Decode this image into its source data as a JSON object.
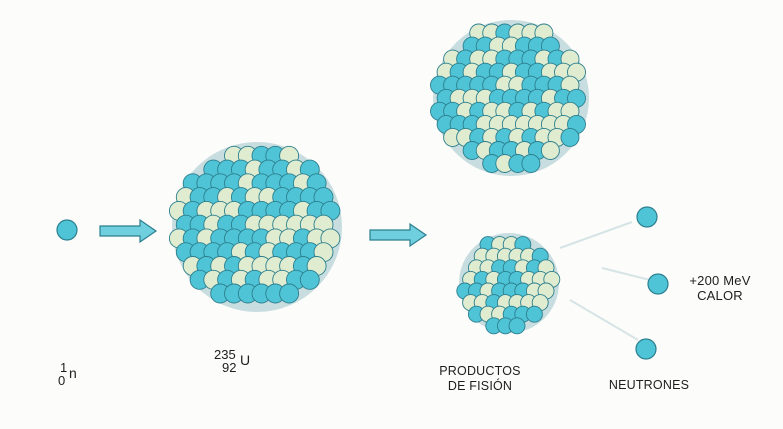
{
  "colors": {
    "nucleon_blue": "#4fc4d6",
    "nucleon_pale": "#dfeccf",
    "outline": "#2c7f8e",
    "arrow_fill": "#6fcfdf",
    "background": "#fcfcfa"
  },
  "neutron_label": {
    "mass_number": "1",
    "atomic_number": "0",
    "symbol": "n"
  },
  "uranium_label": {
    "mass_number": "235",
    "atomic_number": "92",
    "symbol": "U"
  },
  "products_label": {
    "line1": "PRODUCTOS",
    "line2": "DE FISIÓN"
  },
  "neutrons_label": "NEUTRONES",
  "energy_label": {
    "line1": "+200 MeV",
    "line2": "CALOR"
  }
}
